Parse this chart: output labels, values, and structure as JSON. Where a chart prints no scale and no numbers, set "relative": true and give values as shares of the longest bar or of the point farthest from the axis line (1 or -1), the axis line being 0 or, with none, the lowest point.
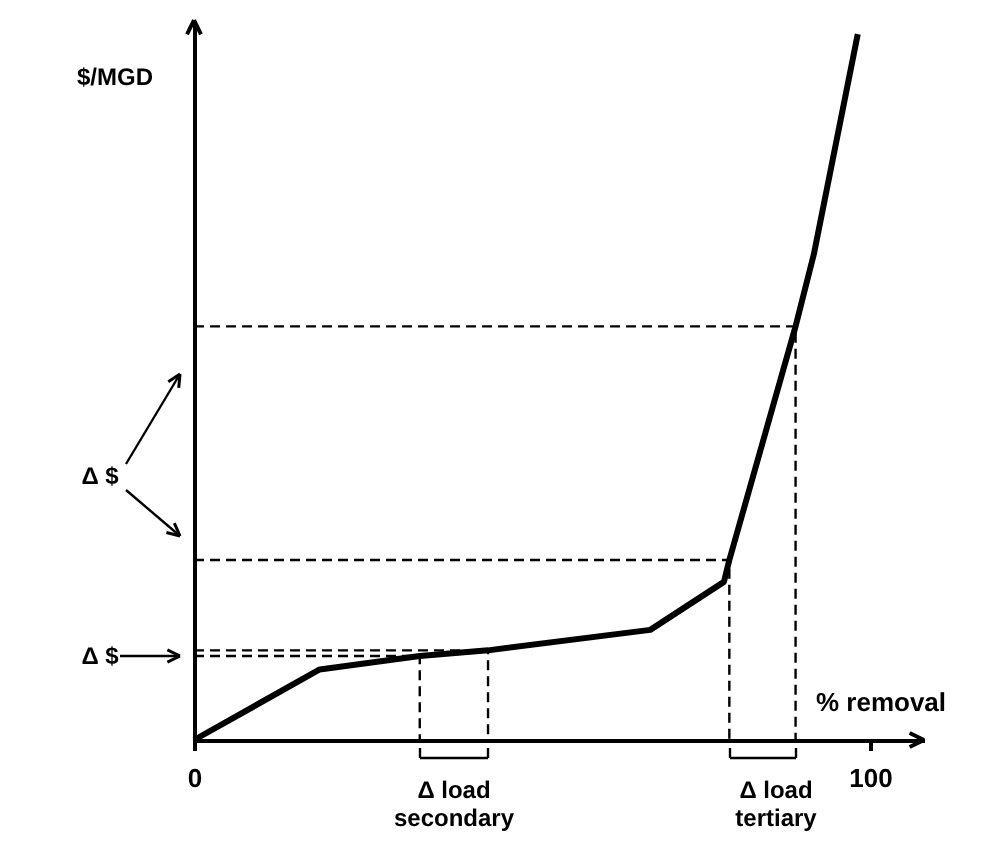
{
  "chart_data": {
    "type": "line",
    "relative": true,
    "xlabel": "% removal",
    "ylabel": "$/MGD",
    "xlim": [
      0,
      108
    ],
    "xticks": [
      0,
      100
    ],
    "grid": false,
    "marker": "none",
    "annotations": [
      "Δ $",
      "Δ $",
      "Δ load\nsecondary",
      "Δ load\ntertiary"
    ],
    "series": [
      {
        "color": "#000000",
        "line_style": "solid",
        "x": [
          0,
          18.6,
          33.4,
          43.5,
          67.5,
          78.4,
          79.2,
          89,
          91.7,
          98.2
        ],
        "values": [
          0,
          0.1,
          0.119,
          0.127,
          0.156,
          0.224,
          0.255,
          0.586,
          0.688,
          1.0
        ]
      },
      {
        "color": "#000000",
        "line_style": "dashed",
        "x": [
          0,
          89,
          89
        ],
        "values": [
          0.586,
          0.586,
          0
        ]
      },
      {
        "color": "#000000",
        "line_style": "dashed",
        "x": [
          0,
          79.2,
          79.2
        ],
        "values": [
          0.255,
          0.255,
          0
        ]
      },
      {
        "color": "#000000",
        "line_style": "dashed",
        "x": [
          0,
          43.5,
          43.5
        ],
        "values": [
          0.127,
          0.127,
          0
        ]
      },
      {
        "color": "#000000",
        "line_style": "dashed",
        "x": [
          0,
          33.4,
          33.4
        ],
        "values": [
          0.119,
          0.119,
          0
        ]
      }
    ]
  }
}
